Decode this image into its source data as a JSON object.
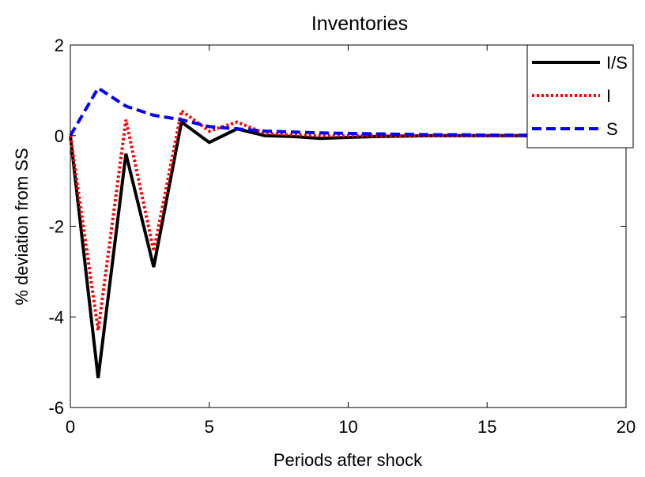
{
  "chart_data": {
    "type": "line",
    "title": "Inventories",
    "x_label": "Periods after shock",
    "y_label": "% deviation from SS",
    "x": [
      0,
      1,
      2,
      3,
      4,
      5,
      6,
      7,
      8,
      9,
      10,
      11,
      12,
      13,
      14,
      15,
      16,
      17,
      18,
      19,
      20
    ],
    "series": [
      {
        "name": "I/S",
        "color": "#000000",
        "style": "solid",
        "values": [
          0,
          -5.35,
          -0.4,
          -2.9,
          0.3,
          -0.15,
          0.15,
          0.0,
          -0.02,
          -0.06,
          -0.04,
          -0.02,
          -0.01,
          0,
          0,
          0,
          0,
          0,
          0,
          0,
          0
        ]
      },
      {
        "name": "I",
        "color": "#ff0000",
        "style": "dotted",
        "values": [
          0,
          -4.3,
          0.35,
          -2.55,
          0.55,
          0.1,
          0.3,
          0.05,
          0.02,
          0,
          0,
          0,
          0,
          0,
          0,
          0,
          0,
          0,
          0,
          0,
          0
        ]
      },
      {
        "name": "S",
        "color": "#0000ff",
        "style": "dashed",
        "values": [
          0,
          1.05,
          0.65,
          0.45,
          0.35,
          0.2,
          0.15,
          0.1,
          0.08,
          0.06,
          0.05,
          0.04,
          0.03,
          0.02,
          0.02,
          0.01,
          0.01,
          0.01,
          0,
          0,
          0
        ]
      }
    ],
    "xlim": [
      0,
      20
    ],
    "xticks": [
      0,
      5,
      10,
      15,
      20
    ],
    "ylim": [
      -6,
      2
    ],
    "yticks": [
      -6,
      -4,
      -2,
      0,
      2
    ],
    "legend": "northeast"
  }
}
